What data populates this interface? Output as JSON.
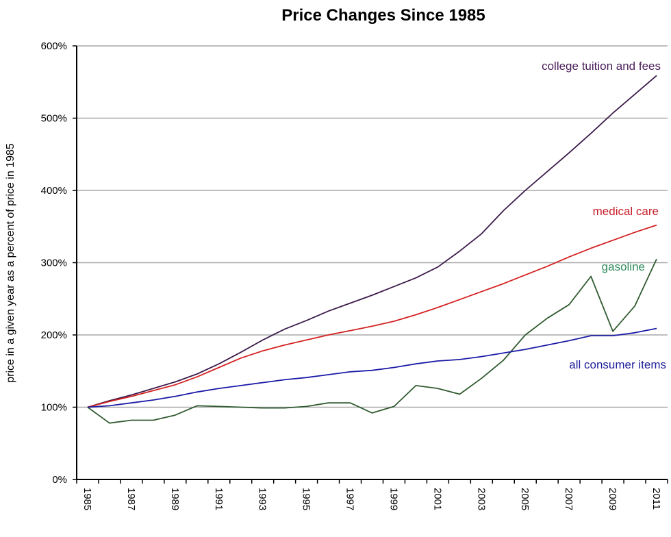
{
  "chart_data": {
    "type": "line",
    "title": "Price Changes Since 1985",
    "xlabel": "",
    "ylabel": "price in a given year as a percent of price in 1985",
    "ylim": [
      0,
      600
    ],
    "yticks": [
      0,
      100,
      200,
      300,
      400,
      500,
      600
    ],
    "ytick_labels": [
      "0%",
      "100%",
      "200%",
      "300%",
      "400%",
      "500%",
      "600%"
    ],
    "grid": true,
    "legend": "inline labels near line ends",
    "x": [
      1985,
      1986,
      1987,
      1988,
      1989,
      1990,
      1991,
      1992,
      1993,
      1994,
      1995,
      1996,
      1997,
      1998,
      1999,
      2000,
      2001,
      2002,
      2003,
      2004,
      2005,
      2006,
      2007,
      2008,
      2009,
      2010,
      2011
    ],
    "xtick_labels": [
      "1985",
      "1987",
      "1989",
      "1991",
      "1993",
      "1995",
      "1997",
      "1999",
      "2001",
      "2003",
      "2005",
      "2007",
      "2009",
      "2011"
    ],
    "series": [
      {
        "name": "college tuition and fees",
        "color": "#3c1a4a",
        "label_color": "#4b1e5a",
        "values": [
          100,
          109,
          117,
          126,
          135,
          146,
          160,
          176,
          193,
          208,
          220,
          233,
          244,
          255,
          267,
          279,
          294,
          316,
          340,
          372,
          400,
          426,
          452,
          479,
          507,
          533,
          559
        ]
      },
      {
        "name": "medical care",
        "color": "#d42020",
        "label_color": "#c81e2a",
        "values": [
          100,
          108,
          115,
          123,
          131,
          142,
          155,
          168,
          178,
          186,
          193,
          200,
          206,
          212,
          219,
          228,
          238,
          249,
          260,
          271,
          283,
          295,
          308,
          320,
          331,
          342,
          352
        ]
      },
      {
        "name": "gasoline",
        "color": "#2f5a2f",
        "label_color": "#2e8a5a",
        "values": [
          100,
          78,
          82,
          82,
          89,
          102,
          101,
          100,
          99,
          99,
          101,
          106,
          106,
          92,
          101,
          130,
          126,
          118,
          140,
          165,
          200,
          223,
          242,
          281,
          205,
          240,
          305
        ]
      },
      {
        "name": "all consumer items",
        "color": "#1a1aa8",
        "label_color": "#1f1f9a",
        "values": [
          100,
          102,
          106,
          110,
          115,
          121,
          126,
          130,
          134,
          138,
          141,
          145,
          149,
          151,
          155,
          160,
          164,
          166,
          170,
          175,
          180,
          186,
          192,
          199,
          199,
          203,
          209
        ]
      }
    ]
  }
}
